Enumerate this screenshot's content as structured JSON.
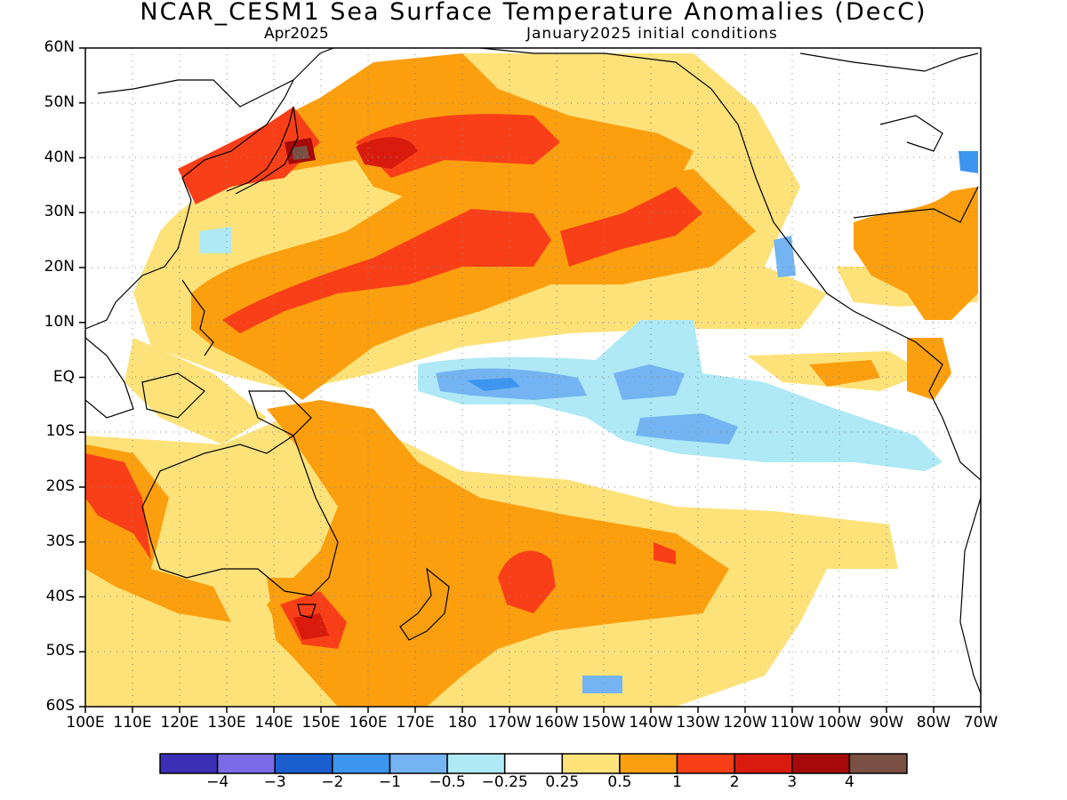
{
  "title": "NCAR_CESM1 Sea Surface Temperature Anomalies (DecC)",
  "subtitle_left": "Apr2025",
  "subtitle_right": "January2025 initial conditions",
  "lat_labels": [
    "60N",
    "50N",
    "40N",
    "30N",
    "20N",
    "10N",
    "EQ",
    "10S",
    "20S",
    "30S",
    "40S",
    "50S",
    "60S"
  ],
  "lon_labels": [
    "100E",
    "110E",
    "120E",
    "130E",
    "140E",
    "150E",
    "160E",
    "170E",
    "180",
    "170W",
    "160W",
    "150W",
    "140W",
    "130W",
    "120W",
    "110W",
    "100W",
    "90W",
    "80W",
    "70W"
  ],
  "colorbar": {
    "colors": [
      "#3a2fb5",
      "#7c6ae6",
      "#1b5fcf",
      "#3d95ef",
      "#74b4f2",
      "#aee9f5",
      "#ffffff",
      "#fde27a",
      "#fb9f0f",
      "#f93f18",
      "#d81b0c",
      "#a5090a",
      "#7a4f44"
    ],
    "labels": [
      "−4",
      "−3",
      "−2",
      "−1",
      "−0.5",
      "−0.25",
      "0.25",
      "0.5",
      "1",
      "2",
      "3",
      "4"
    ]
  }
}
